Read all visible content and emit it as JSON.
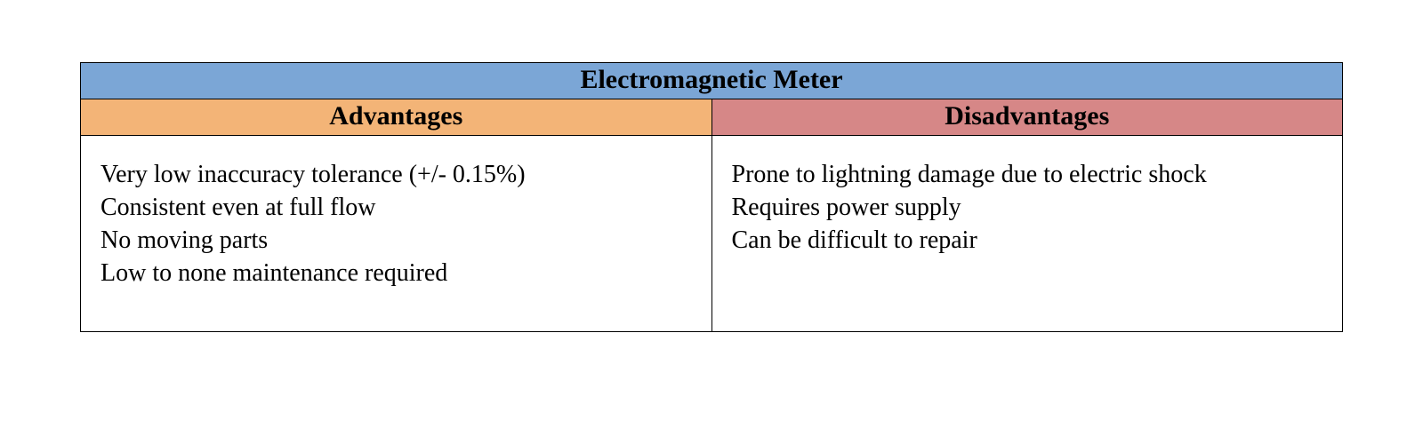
{
  "table": {
    "type": "table",
    "title": "Electromagnetic Meter",
    "title_bg": "#7ba6d6",
    "border_color": "#000000",
    "background_color": "#ffffff",
    "font_family": "Times New Roman",
    "title_fontsize": 30,
    "header_fontsize": 30,
    "body_fontsize": 28,
    "columns": [
      {
        "label": "Advantages",
        "bg": "#f3b477"
      },
      {
        "label": "Disadvantages",
        "bg": "#d68787"
      }
    ],
    "rows": {
      "advantages": [
        "Very low inaccuracy tolerance (+/- 0.15%)",
        "Consistent even at full flow",
        "No moving parts",
        "Low to none maintenance required"
      ],
      "disadvantages": [
        "Prone to lightning damage due to electric shock",
        "Requires power supply",
        "Can be difficult to repair"
      ]
    }
  }
}
